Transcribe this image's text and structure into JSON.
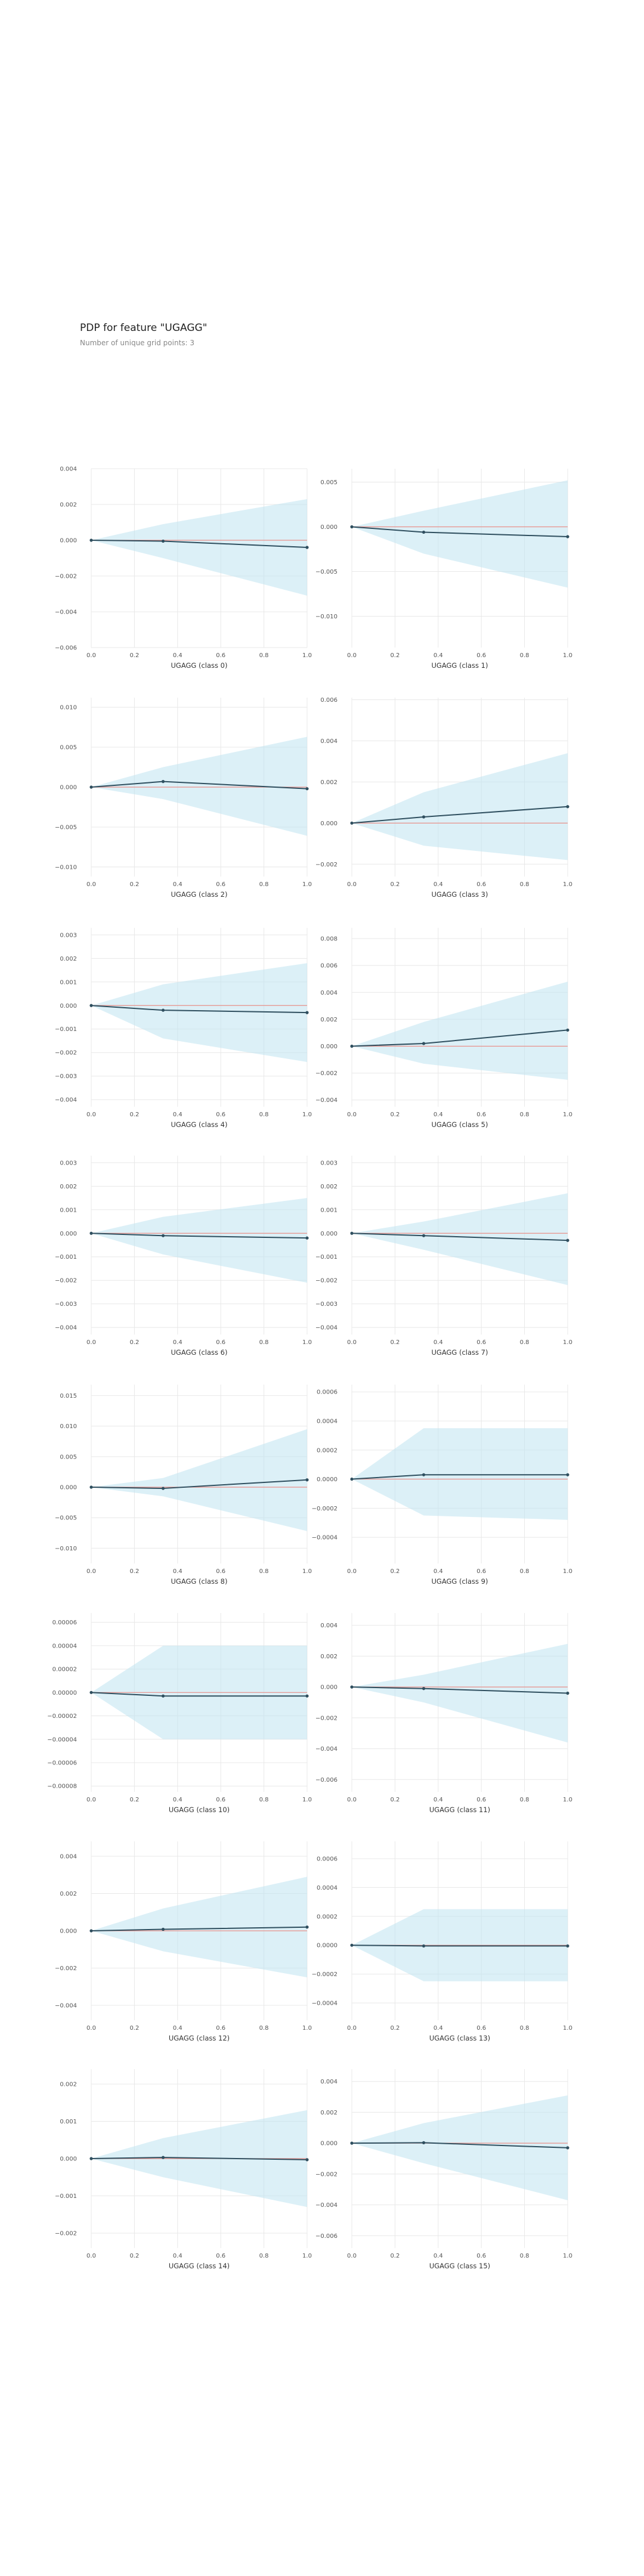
{
  "page": {
    "title": "PDP for feature \"UGAGG\"",
    "subtitle": "Number of unique grid points: 3"
  },
  "colors": {
    "band": "#bfe3f0",
    "line": "#2f4f5f",
    "zero": "#e8908a",
    "grid": "#e8e8e8",
    "tick": "#555555"
  },
  "chart_data": [
    {
      "type": "line",
      "xlabel": "UGAGG (class 0)",
      "x": [
        0,
        0.333,
        1
      ],
      "y": [
        0,
        -5e-05,
        -0.0004
      ],
      "upper": [
        0,
        0.0009,
        0.0023
      ],
      "lower": [
        0,
        -0.001,
        -0.0031
      ],
      "xlim": [
        0,
        1
      ],
      "ylim": [
        -0.006,
        0.004
      ],
      "xticks": [
        "0.0",
        "0.2",
        "0.4",
        "0.6",
        "0.8",
        "1.0"
      ],
      "yticks": [
        {
          "v": 0.004,
          "l": "0.004"
        },
        {
          "v": 0.002,
          "l": "0.002"
        },
        {
          "v": 0,
          "l": "0.000"
        },
        {
          "v": -0.002,
          "l": "−0.002"
        },
        {
          "v": -0.004,
          "l": "−0.004"
        },
        {
          "v": -0.006,
          "l": "−0.006"
        }
      ]
    },
    {
      "type": "line",
      "xlabel": "UGAGG (class 1)",
      "x": [
        0,
        0.333,
        1
      ],
      "y": [
        0,
        -0.0006,
        -0.0011
      ],
      "upper": [
        0,
        0.0018,
        0.0052
      ],
      "lower": [
        0,
        -0.003,
        -0.0068
      ],
      "xlim": [
        0,
        1
      ],
      "ylim": [
        -0.0135,
        0.0065
      ],
      "xticks": [
        "0.0",
        "0.2",
        "0.4",
        "0.6",
        "0.8",
        "1.0"
      ],
      "yticks": [
        {
          "v": 0.005,
          "l": "0.005"
        },
        {
          "v": 0,
          "l": "0.000"
        },
        {
          "v": -0.005,
          "l": "−0.005"
        },
        {
          "v": -0.01,
          "l": "−0.010"
        }
      ]
    },
    {
      "type": "line",
      "xlabel": "UGAGG (class 2)",
      "x": [
        0,
        0.333,
        1
      ],
      "y": [
        0,
        0.0007,
        -0.0002
      ],
      "upper": [
        0,
        0.0025,
        0.0063
      ],
      "lower": [
        0,
        -0.0015,
        -0.0061
      ],
      "xlim": [
        0,
        1
      ],
      "ylim": [
        -0.0112,
        0.0112
      ],
      "xticks": [
        "0.0",
        "0.2",
        "0.4",
        "0.6",
        "0.8",
        "1.0"
      ],
      "yticks": [
        {
          "v": 0.01,
          "l": "0.010"
        },
        {
          "v": 0.005,
          "l": "0.005"
        },
        {
          "v": 0,
          "l": "0.000"
        },
        {
          "v": -0.005,
          "l": "−0.005"
        },
        {
          "v": -0.01,
          "l": "−0.010"
        }
      ]
    },
    {
      "type": "line",
      "xlabel": "UGAGG (class 3)",
      "x": [
        0,
        0.333,
        1
      ],
      "y": [
        0,
        0.0003,
        0.0008
      ],
      "upper": [
        0,
        0.0015,
        0.0034
      ],
      "lower": [
        0,
        -0.0011,
        -0.0018
      ],
      "xlim": [
        0,
        1
      ],
      "ylim": [
        -0.0026,
        0.0061
      ],
      "xticks": [
        "0.0",
        "0.2",
        "0.4",
        "0.6",
        "0.8",
        "1.0"
      ],
      "yticks": [
        {
          "v": 0.006,
          "l": "0.006"
        },
        {
          "v": 0.004,
          "l": "0.004"
        },
        {
          "v": 0.002,
          "l": "0.002"
        },
        {
          "v": 0,
          "l": "0.000"
        },
        {
          "v": -0.002,
          "l": "−0.002"
        }
      ]
    },
    {
      "type": "line",
      "xlabel": "UGAGG (class 4)",
      "x": [
        0,
        0.333,
        1
      ],
      "y": [
        0,
        -0.0002,
        -0.0003
      ],
      "upper": [
        0,
        0.0009,
        0.0018
      ],
      "lower": [
        0,
        -0.0014,
        -0.0024
      ],
      "xlim": [
        0,
        1
      ],
      "ylim": [
        -0.0043,
        0.0033
      ],
      "xticks": [
        "0.0",
        "0.2",
        "0.4",
        "0.6",
        "0.8",
        "1.0"
      ],
      "yticks": [
        {
          "v": 0.003,
          "l": "0.003"
        },
        {
          "v": 0.002,
          "l": "0.002"
        },
        {
          "v": 0.001,
          "l": "0.001"
        },
        {
          "v": 0,
          "l": "0.000"
        },
        {
          "v": -0.001,
          "l": "−0.001"
        },
        {
          "v": -0.002,
          "l": "−0.002"
        },
        {
          "v": -0.003,
          "l": "−0.003"
        },
        {
          "v": -0.004,
          "l": "−0.004"
        }
      ]
    },
    {
      "type": "line",
      "xlabel": "UGAGG (class 5)",
      "x": [
        0,
        0.333,
        1
      ],
      "y": [
        0,
        0.0002,
        0.0012
      ],
      "upper": [
        0,
        0.0018,
        0.0048
      ],
      "lower": [
        0,
        -0.0013,
        -0.0025
      ],
      "xlim": [
        0,
        1
      ],
      "ylim": [
        -0.0045,
        0.0088
      ],
      "xticks": [
        "0.0",
        "0.2",
        "0.4",
        "0.6",
        "0.8",
        "1.0"
      ],
      "yticks": [
        {
          "v": 0.008,
          "l": "0.008"
        },
        {
          "v": 0.006,
          "l": "0.006"
        },
        {
          "v": 0.004,
          "l": "0.004"
        },
        {
          "v": 0.002,
          "l": "0.002"
        },
        {
          "v": 0,
          "l": "0.000"
        },
        {
          "v": -0.002,
          "l": "−0.002"
        },
        {
          "v": -0.004,
          "l": "−0.004"
        }
      ]
    },
    {
      "type": "line",
      "xlabel": "UGAGG (class 6)",
      "x": [
        0,
        0.333,
        1
      ],
      "y": [
        0,
        -0.0001,
        -0.0002
      ],
      "upper": [
        0,
        0.0007,
        0.0015
      ],
      "lower": [
        0,
        -0.0009,
        -0.0021
      ],
      "xlim": [
        0,
        1
      ],
      "ylim": [
        -0.0043,
        0.0033
      ],
      "xticks": [
        "0.0",
        "0.2",
        "0.4",
        "0.6",
        "0.8",
        "1.0"
      ],
      "yticks": [
        {
          "v": 0.003,
          "l": "0.003"
        },
        {
          "v": 0.002,
          "l": "0.002"
        },
        {
          "v": 0.001,
          "l": "0.001"
        },
        {
          "v": 0,
          "l": "0.000"
        },
        {
          "v": -0.001,
          "l": "−0.001"
        },
        {
          "v": -0.002,
          "l": "−0.002"
        },
        {
          "v": -0.003,
          "l": "−0.003"
        },
        {
          "v": -0.004,
          "l": "−0.004"
        }
      ]
    },
    {
      "type": "line",
      "xlabel": "UGAGG (class 7)",
      "x": [
        0,
        0.333,
        1
      ],
      "y": [
        0,
        -0.0001,
        -0.0003
      ],
      "upper": [
        0,
        0.0005,
        0.0017
      ],
      "lower": [
        0,
        -0.0007,
        -0.0022
      ],
      "xlim": [
        0,
        1
      ],
      "ylim": [
        -0.0043,
        0.0033
      ],
      "xticks": [
        "0.0",
        "0.2",
        "0.4",
        "0.6",
        "0.8",
        "1.0"
      ],
      "yticks": [
        {
          "v": 0.003,
          "l": "0.003"
        },
        {
          "v": 0.002,
          "l": "0.002"
        },
        {
          "v": 0.001,
          "l": "0.001"
        },
        {
          "v": 0,
          "l": "0.000"
        },
        {
          "v": -0.001,
          "l": "−0.001"
        },
        {
          "v": -0.002,
          "l": "−0.002"
        },
        {
          "v": -0.003,
          "l": "−0.003"
        },
        {
          "v": -0.004,
          "l": "−0.004"
        }
      ]
    },
    {
      "type": "line",
      "xlabel": "UGAGG (class 8)",
      "x": [
        0,
        0.333,
        1
      ],
      "y": [
        0,
        -0.0002,
        0.0012
      ],
      "upper": [
        0,
        0.0015,
        0.0095
      ],
      "lower": [
        0,
        -0.0015,
        -0.0072
      ],
      "xlim": [
        0,
        1
      ],
      "ylim": [
        -0.0125,
        0.0168
      ],
      "xticks": [
        "0.0",
        "0.2",
        "0.4",
        "0.6",
        "0.8",
        "1.0"
      ],
      "yticks": [
        {
          "v": 0.015,
          "l": "0.015"
        },
        {
          "v": 0.01,
          "l": "0.010"
        },
        {
          "v": 0.005,
          "l": "0.005"
        },
        {
          "v": 0,
          "l": "0.000"
        },
        {
          "v": -0.005,
          "l": "−0.005"
        },
        {
          "v": -0.01,
          "l": "−0.010"
        }
      ]
    },
    {
      "type": "line",
      "xlabel": "UGAGG (class 9)",
      "x": [
        0,
        0.333,
        1
      ],
      "y": [
        0,
        3e-05,
        3e-05
      ],
      "upper": [
        0,
        0.00035,
        0.00035
      ],
      "lower": [
        0,
        -0.00025,
        -0.00028
      ],
      "xlim": [
        0,
        1
      ],
      "ylim": [
        -0.00058,
        0.00065
      ],
      "xticks": [
        "0.0",
        "0.2",
        "0.4",
        "0.6",
        "0.8",
        "1.0"
      ],
      "yticks": [
        {
          "v": 0.0006,
          "l": "0.0006"
        },
        {
          "v": 0.0004,
          "l": "0.0004"
        },
        {
          "v": 0.0002,
          "l": "0.0002"
        },
        {
          "v": 0,
          "l": "0.0000"
        },
        {
          "v": -0.0002,
          "l": "−0.0002"
        },
        {
          "v": -0.0004,
          "l": "−0.0004"
        }
      ]
    },
    {
      "type": "line",
      "xlabel": "UGAGG (class 10)",
      "x": [
        0,
        0.333,
        1
      ],
      "y": [
        0,
        -3e-06,
        -3e-06
      ],
      "upper": [
        0,
        4e-05,
        4e-05
      ],
      "lower": [
        0,
        -4e-05,
        -4e-05
      ],
      "xlim": [
        0,
        1
      ],
      "ylim": [
        -8.5e-05,
        6.8e-05
      ],
      "xticks": [
        "0.0",
        "0.2",
        "0.4",
        "0.6",
        "0.8",
        "1.0"
      ],
      "yticks": [
        {
          "v": 6e-05,
          "l": "0.00006"
        },
        {
          "v": 4e-05,
          "l": "0.00004"
        },
        {
          "v": 2e-05,
          "l": "0.00002"
        },
        {
          "v": 0,
          "l": "0.00000"
        },
        {
          "v": -2e-05,
          "l": "−0.00002"
        },
        {
          "v": -4e-05,
          "l": "−0.00004"
        },
        {
          "v": -6e-05,
          "l": "−0.00006"
        },
        {
          "v": -8e-05,
          "l": "−0.00008"
        }
      ]
    },
    {
      "type": "line",
      "xlabel": "UGAGG (class 11)",
      "x": [
        0,
        0.333,
        1
      ],
      "y": [
        0,
        -0.0001,
        -0.0004
      ],
      "upper": [
        0,
        0.0008,
        0.0028
      ],
      "lower": [
        0,
        -0.001,
        -0.0036
      ],
      "xlim": [
        0,
        1
      ],
      "ylim": [
        -0.0068,
        0.0048
      ],
      "xticks": [
        "0.0",
        "0.2",
        "0.4",
        "0.6",
        "0.8",
        "1.0"
      ],
      "yticks": [
        {
          "v": 0.004,
          "l": "0.004"
        },
        {
          "v": 0.002,
          "l": "0.002"
        },
        {
          "v": 0,
          "l": "0.000"
        },
        {
          "v": -0.002,
          "l": "−0.002"
        },
        {
          "v": -0.004,
          "l": "−0.004"
        },
        {
          "v": -0.006,
          "l": "−0.006"
        }
      ]
    },
    {
      "type": "line",
      "xlabel": "UGAGG (class 12)",
      "x": [
        0,
        0.333,
        1
      ],
      "y": [
        0,
        8e-05,
        0.0002
      ],
      "upper": [
        0,
        0.0012,
        0.0029
      ],
      "lower": [
        0,
        -0.0011,
        -0.0025
      ],
      "xlim": [
        0,
        1
      ],
      "ylim": [
        -0.0048,
        0.0048
      ],
      "xticks": [
        "0.0",
        "0.2",
        "0.4",
        "0.6",
        "0.8",
        "1.0"
      ],
      "yticks": [
        {
          "v": 0.004,
          "l": "0.004"
        },
        {
          "v": 0.002,
          "l": "0.002"
        },
        {
          "v": 0,
          "l": "0.000"
        },
        {
          "v": -0.002,
          "l": "−0.002"
        },
        {
          "v": -0.004,
          "l": "−0.004"
        }
      ]
    },
    {
      "type": "line",
      "xlabel": "UGAGG (class 13)",
      "x": [
        0,
        0.333,
        1
      ],
      "y": [
        0,
        -5e-06,
        -5e-06
      ],
      "upper": [
        0,
        0.00025,
        0.00025
      ],
      "lower": [
        0,
        -0.00025,
        -0.00025
      ],
      "xlim": [
        0,
        1
      ],
      "ylim": [
        -0.00052,
        0.00072
      ],
      "xticks": [
        "0.0",
        "0.2",
        "0.4",
        "0.6",
        "0.8",
        "1.0"
      ],
      "yticks": [
        {
          "v": 0.0006,
          "l": "0.0006"
        },
        {
          "v": 0.0004,
          "l": "0.0004"
        },
        {
          "v": 0.0002,
          "l": "0.0002"
        },
        {
          "v": 0,
          "l": "0.0000"
        },
        {
          "v": -0.0002,
          "l": "−0.0002"
        },
        {
          "v": -0.0004,
          "l": "−0.0004"
        }
      ]
    },
    {
      "type": "line",
      "xlabel": "UGAGG (class 14)",
      "x": [
        0,
        0.333,
        1
      ],
      "y": [
        0,
        3e-05,
        -3e-05
      ],
      "upper": [
        0,
        0.00055,
        0.0013
      ],
      "lower": [
        0,
        -0.0005,
        -0.0013
      ],
      "xlim": [
        0,
        1
      ],
      "ylim": [
        -0.0024,
        0.0024
      ],
      "xticks": [
        "0.0",
        "0.2",
        "0.4",
        "0.6",
        "0.8",
        "1.0"
      ],
      "yticks": [
        {
          "v": 0.002,
          "l": "0.002"
        },
        {
          "v": 0.001,
          "l": "0.001"
        },
        {
          "v": 0,
          "l": "0.000"
        },
        {
          "v": -0.001,
          "l": "−0.001"
        },
        {
          "v": -0.002,
          "l": "−0.002"
        }
      ]
    },
    {
      "type": "line",
      "xlabel": "UGAGG (class 15)",
      "x": [
        0,
        0.333,
        1
      ],
      "y": [
        0,
        3e-05,
        -0.0003
      ],
      "upper": [
        0,
        0.0013,
        0.0031
      ],
      "lower": [
        0,
        -0.0013,
        -0.0037
      ],
      "xlim": [
        0,
        1
      ],
      "ylim": [
        -0.0068,
        0.0048
      ],
      "xticks": [
        "0.0",
        "0.2",
        "0.4",
        "0.6",
        "0.8",
        "1.0"
      ],
      "yticks": [
        {
          "v": 0.004,
          "l": "0.004"
        },
        {
          "v": 0.002,
          "l": "0.002"
        },
        {
          "v": 0,
          "l": "0.000"
        },
        {
          "v": -0.002,
          "l": "−0.002"
        },
        {
          "v": -0.004,
          "l": "−0.004"
        },
        {
          "v": -0.006,
          "l": "−0.006"
        }
      ]
    }
  ]
}
